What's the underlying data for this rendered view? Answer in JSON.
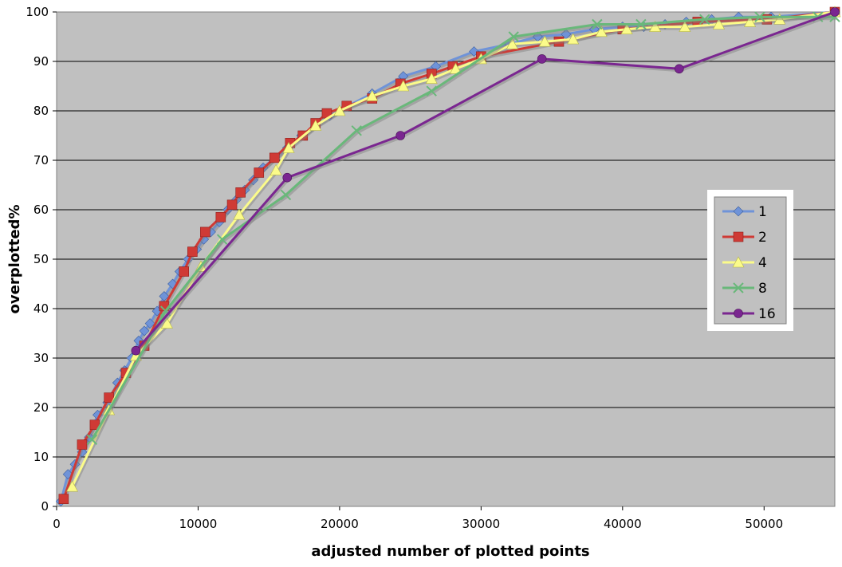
{
  "chart_data": {
    "type": "line",
    "title": "",
    "xlabel": "adjusted number of plotted points",
    "ylabel": "overplotted%",
    "xlim": [
      0,
      55000
    ],
    "ylim": [
      0,
      100
    ],
    "x_ticks": [
      0,
      10000,
      20000,
      30000,
      40000,
      50000
    ],
    "y_ticks": [
      0,
      10,
      20,
      30,
      40,
      50,
      60,
      70,
      80,
      90,
      100
    ],
    "grid": "horizontal",
    "plot_background": "#c0c0c0",
    "legend_position": "right",
    "series": [
      {
        "name": "1",
        "color": "#6f93d8",
        "marker": "diamond",
        "points": [
          [
            300,
            1
          ],
          [
            800,
            6.5
          ],
          [
            1300,
            8.5
          ],
          [
            1800,
            11
          ],
          [
            2300,
            14
          ],
          [
            2900,
            18.5
          ],
          [
            3600,
            21
          ],
          [
            4300,
            25
          ],
          [
            4800,
            27.5
          ],
          [
            5300,
            30
          ],
          [
            5800,
            33.5
          ],
          [
            6200,
            35.5
          ],
          [
            6600,
            37
          ],
          [
            7100,
            39.5
          ],
          [
            7600,
            42.5
          ],
          [
            8200,
            45
          ],
          [
            8700,
            47.5
          ],
          [
            9300,
            50
          ],
          [
            9900,
            52
          ],
          [
            10400,
            54
          ],
          [
            10900,
            55.5
          ],
          [
            11500,
            57.5
          ],
          [
            12100,
            60
          ],
          [
            12700,
            62
          ],
          [
            13300,
            64
          ],
          [
            13900,
            66
          ],
          [
            14600,
            68.5
          ],
          [
            15400,
            70.5
          ],
          [
            16300,
            72.5
          ],
          [
            17300,
            75
          ],
          [
            18300,
            77
          ],
          [
            19300,
            79
          ],
          [
            20600,
            81
          ],
          [
            22300,
            83.5
          ],
          [
            24500,
            87
          ],
          [
            26800,
            89
          ],
          [
            29500,
            92
          ],
          [
            32000,
            93.5
          ],
          [
            34000,
            95
          ],
          [
            36000,
            95.5
          ],
          [
            38000,
            96.5
          ],
          [
            40000,
            97
          ],
          [
            41500,
            97
          ],
          [
            43000,
            97.5
          ],
          [
            44500,
            98
          ],
          [
            46300,
            98.5
          ],
          [
            48200,
            99
          ],
          [
            50500,
            99
          ],
          [
            55000,
            100
          ]
        ]
      },
      {
        "name": "2",
        "color": "#cf3a35",
        "marker": "square",
        "points": [
          [
            500,
            1.5
          ],
          [
            1800,
            12.5
          ],
          [
            2700,
            16.5
          ],
          [
            3700,
            22
          ],
          [
            4900,
            27
          ],
          [
            6200,
            32.5
          ],
          [
            7600,
            40.5
          ],
          [
            9000,
            47.5
          ],
          [
            9600,
            51.5
          ],
          [
            10500,
            55.5
          ],
          [
            11600,
            58.5
          ],
          [
            12400,
            61
          ],
          [
            13000,
            63.5
          ],
          [
            14300,
            67.5
          ],
          [
            15400,
            70.5
          ],
          [
            16500,
            73.5
          ],
          [
            17400,
            75
          ],
          [
            18300,
            77.5
          ],
          [
            19100,
            79.5
          ],
          [
            20500,
            81
          ],
          [
            22300,
            82.5
          ],
          [
            24300,
            85.5
          ],
          [
            26500,
            87.5
          ],
          [
            28000,
            89
          ],
          [
            30000,
            91
          ],
          [
            35500,
            94
          ],
          [
            40000,
            96.5
          ],
          [
            45300,
            98
          ],
          [
            50200,
            98.5
          ],
          [
            55000,
            100
          ]
        ]
      },
      {
        "name": "4",
        "color": "#fbfb8a",
        "marker": "triangle",
        "points": [
          [
            1100,
            4
          ],
          [
            3700,
            19.5
          ],
          [
            5600,
            30.5
          ],
          [
            7800,
            37
          ],
          [
            10200,
            48.5
          ],
          [
            12900,
            59
          ],
          [
            15500,
            68
          ],
          [
            16400,
            72.5
          ],
          [
            18300,
            77
          ],
          [
            20000,
            80
          ],
          [
            22300,
            83
          ],
          [
            24500,
            85
          ],
          [
            26500,
            86.5
          ],
          [
            28200,
            88.5
          ],
          [
            30000,
            90.5
          ],
          [
            32200,
            93.5
          ],
          [
            34500,
            94
          ],
          [
            36500,
            94.5
          ],
          [
            38500,
            96
          ],
          [
            40300,
            96.5
          ],
          [
            42300,
            97
          ],
          [
            44400,
            97
          ],
          [
            46800,
            97.5
          ],
          [
            49000,
            98
          ],
          [
            51100,
            98.5
          ],
          [
            55000,
            100
          ]
        ]
      },
      {
        "name": "8",
        "color": "#69b87a",
        "marker": "x",
        "points": [
          [
            2500,
            13.5
          ],
          [
            7700,
            39.5
          ],
          [
            11700,
            54
          ],
          [
            16200,
            63
          ],
          [
            21200,
            76
          ],
          [
            26500,
            84
          ],
          [
            32300,
            95
          ],
          [
            38200,
            97.5
          ],
          [
            41300,
            97.5
          ],
          [
            45800,
            98.5
          ],
          [
            49700,
            99
          ],
          [
            53800,
            99
          ],
          [
            55000,
            99
          ]
        ]
      },
      {
        "name": "16",
        "color": "#7a2690",
        "marker": "circle",
        "points": [
          [
            5600,
            31.5
          ],
          [
            16300,
            66.5
          ],
          [
            24300,
            75
          ],
          [
            34300,
            90.5
          ],
          [
            44000,
            88.5
          ],
          [
            55000,
            100
          ]
        ]
      }
    ]
  }
}
